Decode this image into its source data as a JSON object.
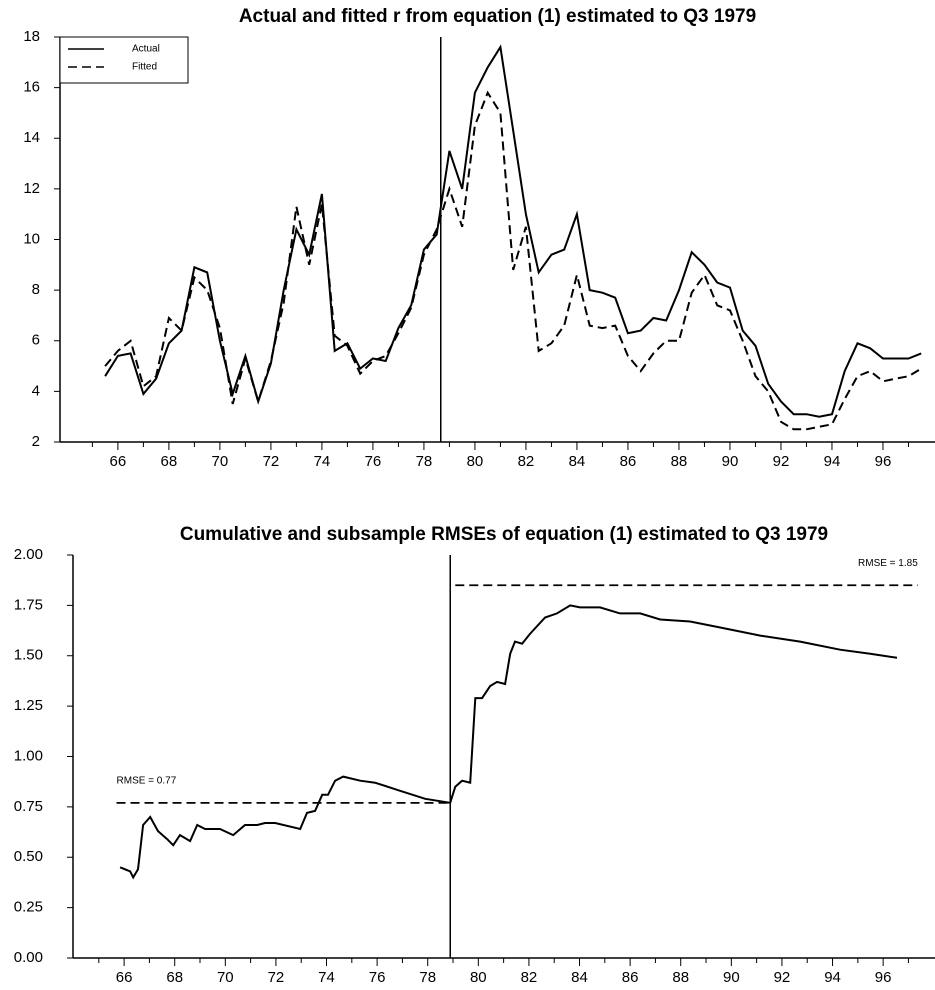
{
  "chart_data": [
    {
      "type": "line",
      "title": "Actual and fitted r from equation (1) estimated to Q3 1979",
      "x": [
        65.5,
        66,
        66.5,
        67,
        67.5,
        68,
        68.5,
        69,
        69.5,
        70,
        70.5,
        71,
        71.5,
        72,
        72.5,
        73,
        73.5,
        74,
        74.5,
        75,
        75.5,
        76,
        76.5,
        77,
        77.5,
        78,
        78.5,
        79,
        79.5,
        80,
        80.5,
        81,
        81.5,
        82,
        82.5,
        83,
        83.5,
        84,
        84.5,
        85,
        85.5,
        86,
        86.5,
        87,
        87.5,
        88,
        88.5,
        89,
        89.5,
        90,
        90.5,
        91,
        91.5,
        92,
        92.5,
        93,
        93.5,
        94,
        94.5,
        95,
        95.5,
        96,
        96.5,
        97,
        97.5
      ],
      "series": [
        {
          "name": "Actual",
          "color": "#000000",
          "dash": "solid",
          "values": [
            4.6,
            5.4,
            5.5,
            3.9,
            4.5,
            5.9,
            6.4,
            8.9,
            8.7,
            6.0,
            3.9,
            5.4,
            3.6,
            5.1,
            8.0,
            10.4,
            9.4,
            11.8,
            5.6,
            5.9,
            4.9,
            5.3,
            5.2,
            6.5,
            7.4,
            9.6,
            10.2,
            13.5,
            12.0,
            15.8,
            16.8,
            17.6,
            14.3,
            11.0,
            8.7,
            9.4,
            9.6,
            11.0,
            8.0,
            7.9,
            7.7,
            6.3,
            6.4,
            6.9,
            6.8,
            8.0,
            9.5,
            9.0,
            8.3,
            8.1,
            6.4,
            5.8,
            4.3,
            3.6,
            3.1,
            3.1,
            3.0,
            3.1,
            4.8,
            5.9,
            5.7,
            5.3,
            5.3,
            5.3,
            5.5
          ]
        },
        {
          "name": "Fitted",
          "color": "#000000",
          "dash": "dashed",
          "values": [
            5.0,
            5.6,
            6.0,
            4.2,
            4.6,
            6.9,
            6.4,
            8.5,
            8.0,
            6.5,
            3.5,
            5.3,
            3.6,
            5.2,
            7.5,
            11.3,
            9.0,
            11.4,
            6.2,
            5.8,
            4.7,
            5.2,
            5.4,
            6.3,
            7.3,
            9.4,
            10.4,
            12.0,
            10.5,
            14.5,
            15.8,
            15.0,
            8.8,
            10.5,
            5.6,
            5.9,
            6.6,
            8.6,
            6.6,
            6.5,
            6.6,
            5.4,
            4.8,
            5.5,
            6.0,
            6.0,
            7.9,
            8.6,
            7.4,
            7.2,
            6.0,
            4.6,
            4.0,
            2.8,
            2.5,
            2.5,
            2.6,
            2.7,
            3.7,
            4.6,
            4.8,
            4.4,
            4.5,
            4.6,
            4.9
          ]
        }
      ],
      "xlim": [
        63.73,
        98.04
      ],
      "ylim": [
        2,
        18
      ],
      "xticks": [
        66,
        68,
        70,
        72,
        74,
        76,
        78,
        80,
        82,
        84,
        86,
        88,
        90,
        92,
        94,
        96
      ],
      "xminor": [
        65,
        67,
        69,
        71,
        73,
        75,
        77,
        79,
        81,
        83,
        85,
        87,
        89,
        91,
        93,
        95,
        97
      ],
      "yticks": [
        2,
        4,
        6,
        8,
        10,
        12,
        14,
        16,
        18
      ],
      "vline": 78.66,
      "legend": "upper left"
    },
    {
      "type": "line",
      "title": "Cumulative and subsample RMSEs of equation (1) estimated to Q3 1979",
      "x": [
        65.84,
        66.24,
        66.36,
        66.55,
        66.75,
        67.03,
        67.34,
        67.7,
        67.94,
        68.21,
        68.61,
        68.89,
        69.2,
        69.79,
        70.31,
        70.78,
        71.26,
        71.57,
        71.97,
        72.96,
        73.23,
        73.55,
        73.83,
        74.06,
        74.34,
        74.66,
        75.33,
        75.92,
        76.91,
        77.9,
        78.89,
        79.09,
        79.36,
        79.68,
        79.88,
        80.15,
        80.47,
        80.74,
        81.06,
        81.26,
        81.45,
        81.73,
        82.05,
        82.64,
        83.11,
        83.63,
        84.02,
        84.81,
        85.6,
        86.4,
        87.19,
        88.37,
        89.56,
        91.14,
        92.72,
        94.3,
        95.49,
        96.55
      ],
      "values": [
        0.45,
        0.43,
        0.4,
        0.44,
        0.66,
        0.7,
        0.63,
        0.59,
        0.56,
        0.61,
        0.58,
        0.66,
        0.64,
        0.64,
        0.61,
        0.66,
        0.66,
        0.67,
        0.67,
        0.64,
        0.72,
        0.73,
        0.81,
        0.81,
        0.88,
        0.9,
        0.88,
        0.87,
        0.83,
        0.79,
        0.77,
        0.85,
        0.88,
        0.87,
        1.29,
        1.29,
        1.35,
        1.37,
        1.36,
        1.51,
        1.57,
        1.56,
        1.61,
        1.69,
        1.71,
        1.75,
        1.74,
        1.74,
        1.71,
        1.71,
        1.68,
        1.67,
        1.64,
        1.6,
        1.57,
        1.53,
        1.51,
        1.49
      ],
      "color": "#000000",
      "reference_lines": [
        {
          "label": "RMSE =  0.77",
          "value": 0.77,
          "x": [
            65.7,
            78.89
          ]
        },
        {
          "label": "RMSE =  1.85",
          "value": 1.85,
          "x": [
            79.09,
            97.37
          ]
        }
      ],
      "xlim": [
        63.98,
        98.05
      ],
      "ylim": [
        0,
        2
      ],
      "xticks": [
        66,
        68,
        70,
        72,
        74,
        76,
        78,
        80,
        82,
        84,
        86,
        88,
        90,
        92,
        94,
        96
      ],
      "xminor": [
        65,
        67,
        69,
        71,
        73,
        75,
        77,
        79,
        81,
        83,
        85,
        87,
        89,
        91,
        93,
        95,
        97
      ],
      "yticks": [
        {
          "value": 0,
          "label": "0.00"
        },
        {
          "value": 0.25,
          "label": "0.25"
        },
        {
          "value": 0.5,
          "label": "0.50"
        },
        {
          "value": 0.75,
          "label": "0.75"
        },
        {
          "value": 1,
          "label": "1.00"
        },
        {
          "value": 1.25,
          "label": "1.25"
        },
        {
          "value": 1.5,
          "label": "1.50"
        },
        {
          "value": 1.75,
          "label": "1.75"
        },
        {
          "value": 2,
          "label": "2.00"
        }
      ],
      "vline": 78.89
    }
  ]
}
